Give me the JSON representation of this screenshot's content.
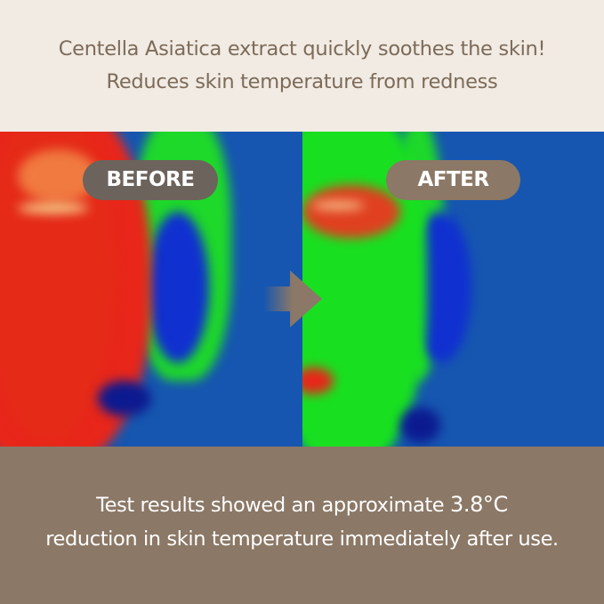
{
  "headline": {
    "line1": "Centella Asiatica extract quickly soothes the skin!",
    "line2": "Reduces skin temperature from redness"
  },
  "comparison": {
    "before_label": "BEFORE",
    "after_label": "AFTER",
    "arrow_icon": "arrow-right-icon",
    "colors": {
      "hot": "#e8261a",
      "warm": "#18e020",
      "cool": "#1656b0"
    }
  },
  "result": {
    "line1_prefix": "Test results showed an approximate ",
    "value": "3.8°C",
    "line2": "reduction in skin temperature immediately after use."
  },
  "colors": {
    "top_bg": "#f1ebe3",
    "top_text": "#7d6b59",
    "bottom_bg": "#8b7866",
    "before_pill": "#6c635c",
    "after_pill": "#8b7866"
  }
}
